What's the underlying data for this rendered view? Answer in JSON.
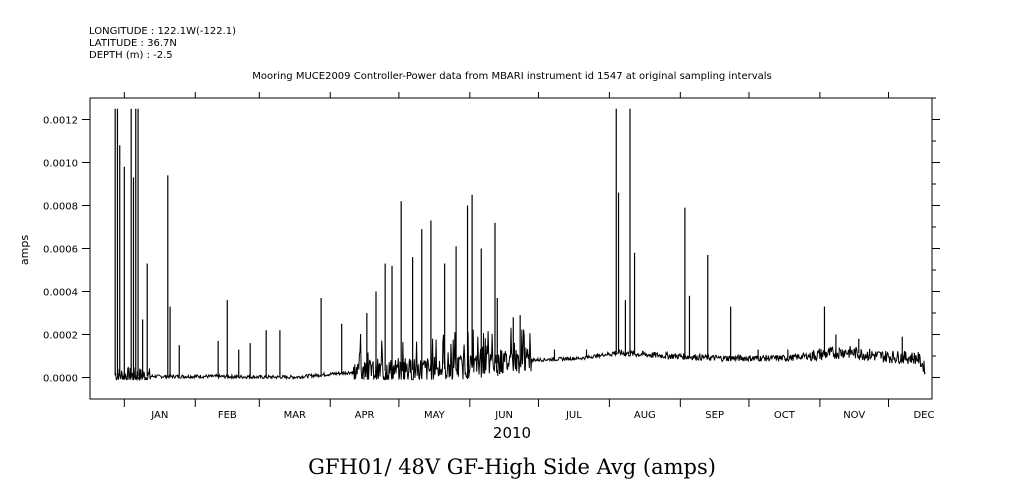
{
  "header": {
    "longitude": "LONGITUDE : 122.1W(-122.1)",
    "latitude": "LATITUDE : 36.7N",
    "depth": "DEPTH (m) : -2.5"
  },
  "chart_data": {
    "type": "line",
    "title": "Mooring MUCE2009 Controller-Power data from MBARI instrument id 1547 at original sampling intervals",
    "bottom_title": "GFH01/ 48V GF-High Side Avg (amps)",
    "ylabel": "amps",
    "xlabel_year": "2010",
    "xlim_days": [
      -15,
      353
    ],
    "ylim": [
      -0.0001,
      0.0013
    ],
    "yticks": [
      "0.0000",
      "0.0002",
      "0.0004",
      "0.0006",
      "0.0008",
      "0.0010",
      "0.0012"
    ],
    "ytick_values": [
      0.0,
      0.0002,
      0.0004,
      0.0006,
      0.0008,
      0.001,
      0.0012
    ],
    "months": [
      "JAN",
      "FEB",
      "MAR",
      "APR",
      "MAY",
      "JUN",
      "JUL",
      "AUG",
      "SEP",
      "OCT",
      "NOV",
      "DEC"
    ],
    "month_start_days": [
      0,
      31,
      59,
      90,
      120,
      151,
      181,
      212,
      243,
      273,
      304,
      334
    ],
    "grid": false,
    "series": [
      {
        "baseline": [
          [
            -4,
            1e-05
          ],
          [
            15,
            5e-06
          ],
          [
            40,
            5e-06
          ],
          [
            60,
            2e-06
          ],
          [
            75,
            2e-06
          ],
          [
            100,
            2.5e-05
          ],
          [
            140,
            4e-05
          ],
          [
            175,
            8e-05
          ],
          [
            200,
            9e-05
          ],
          [
            215,
            0.000115
          ],
          [
            230,
            0.000105
          ],
          [
            260,
            9e-05
          ],
          [
            290,
            9e-05
          ],
          [
            315,
            0.00012
          ],
          [
            330,
            0.0001
          ],
          [
            347,
            9e-05
          ],
          [
            350,
            4e-05
          ]
        ],
        "spikes": [
          [
            -4,
            0.00125
          ],
          [
            -3,
            0.00125
          ],
          [
            -2,
            0.00108
          ],
          [
            0,
            0.00098
          ],
          [
            3,
            0.00125
          ],
          [
            4,
            0.00093
          ],
          [
            5,
            0.00125
          ],
          [
            6,
            0.00125
          ],
          [
            8,
            0.00027
          ],
          [
            10,
            0.00053
          ],
          [
            19,
            0.00094
          ],
          [
            20,
            0.00033
          ],
          [
            24,
            0.00015
          ],
          [
            41,
            0.00017
          ],
          [
            45,
            0.00036
          ],
          [
            50,
            0.00013
          ],
          [
            55,
            0.00016
          ],
          [
            62,
            0.00022
          ],
          [
            68,
            0.00022
          ],
          [
            86,
            0.00037
          ],
          [
            95,
            0.00025
          ],
          [
            106,
            0.0003
          ],
          [
            110,
            0.0004
          ],
          [
            114,
            0.00053
          ],
          [
            117,
            0.00052
          ],
          [
            121,
            0.00082
          ],
          [
            126,
            0.00056
          ],
          [
            130,
            0.00069
          ],
          [
            134,
            0.00073
          ],
          [
            140,
            0.00053
          ],
          [
            145,
            0.00061
          ],
          [
            150,
            0.0008
          ],
          [
            152,
            0.00085
          ],
          [
            156,
            0.0006
          ],
          [
            162,
            0.00072
          ],
          [
            163,
            0.00037
          ],
          [
            170,
            0.00028
          ],
          [
            173,
            0.00029
          ],
          [
            188,
            0.00013
          ],
          [
            202,
            0.00013
          ],
          [
            215,
            0.00125
          ],
          [
            216,
            0.00086
          ],
          [
            219,
            0.00036
          ],
          [
            221,
            0.00125
          ],
          [
            223,
            0.00058
          ],
          [
            245,
            0.00079
          ],
          [
            247,
            0.00038
          ],
          [
            255,
            0.00057
          ],
          [
            265,
            0.00033
          ],
          [
            277,
            0.00013
          ],
          [
            290,
            0.00013
          ],
          [
            306,
            0.00033
          ],
          [
            311,
            0.0002
          ],
          [
            321,
            0.00018
          ],
          [
            340,
            0.00019
          ]
        ]
      }
    ]
  }
}
